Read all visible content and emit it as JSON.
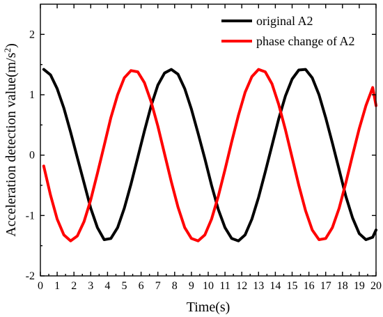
{
  "chart_data": {
    "type": "line",
    "xlabel": "Time(s)",
    "ylabel_main": "Acceleration detection value(m/s",
    "ylabel_sup": "2",
    "ylabel_close": ")",
    "xlim": [
      0,
      20
    ],
    "ylim": [
      -2,
      2.5
    ],
    "x_ticks": [
      "0",
      "1",
      "2",
      "3",
      "4",
      "5",
      "6",
      "7",
      "8",
      "9",
      "10",
      "11",
      "12",
      "13",
      "14",
      "15",
      "16",
      "17",
      "18",
      "19",
      "20"
    ],
    "y_ticks": [
      "-2",
      "-1",
      "0",
      "1",
      "2"
    ],
    "grid": false,
    "legend_position": "top-right",
    "series": [
      {
        "name": "original A2",
        "color": "#000000",
        "x": [
          0.2,
          0.6,
          1.0,
          1.4,
          1.8,
          2.2,
          2.6,
          3.0,
          3.4,
          3.8,
          4.2,
          4.6,
          5.0,
          5.4,
          5.8,
          6.2,
          6.6,
          7.0,
          7.4,
          7.8,
          8.2,
          8.6,
          9.0,
          9.4,
          9.8,
          10.2,
          10.6,
          11.0,
          11.4,
          11.8,
          12.2,
          12.6,
          13.0,
          13.4,
          13.8,
          14.2,
          14.6,
          15.0,
          15.4,
          15.8,
          16.2,
          16.6,
          17.0,
          17.4,
          17.8,
          18.2,
          18.6,
          19.0,
          19.4,
          19.8,
          20.0
        ],
        "y": [
          1.42,
          1.33,
          1.1,
          0.78,
          0.38,
          -0.04,
          -0.46,
          -0.88,
          -1.2,
          -1.4,
          -1.38,
          -1.2,
          -0.88,
          -0.48,
          -0.04,
          0.4,
          0.82,
          1.16,
          1.36,
          1.42,
          1.34,
          1.1,
          0.76,
          0.36,
          -0.06,
          -0.5,
          -0.9,
          -1.2,
          -1.38,
          -1.42,
          -1.32,
          -1.06,
          -0.7,
          -0.28,
          0.16,
          0.6,
          0.98,
          1.26,
          1.41,
          1.42,
          1.28,
          1.0,
          0.62,
          0.2,
          -0.24,
          -0.68,
          -1.04,
          -1.3,
          -1.4,
          -1.36,
          -1.24
        ]
      },
      {
        "name": "phase change of A2",
        "color": "#ff0000",
        "x": [
          0.2,
          0.6,
          1.0,
          1.4,
          1.8,
          2.2,
          2.6,
          3.0,
          3.4,
          3.8,
          4.2,
          4.6,
          5.0,
          5.4,
          5.8,
          6.2,
          6.6,
          7.0,
          7.4,
          7.8,
          8.2,
          8.6,
          9.0,
          9.4,
          9.8,
          10.2,
          10.6,
          11.0,
          11.4,
          11.8,
          12.2,
          12.6,
          13.0,
          13.4,
          13.8,
          14.2,
          14.6,
          15.0,
          15.4,
          15.8,
          16.2,
          16.6,
          17.0,
          17.4,
          17.8,
          18.2,
          18.6,
          19.0,
          19.4,
          19.8,
          20.0
        ],
        "y": [
          -0.18,
          -0.66,
          -1.06,
          -1.32,
          -1.42,
          -1.34,
          -1.1,
          -0.74,
          -0.3,
          0.16,
          0.62,
          1.0,
          1.28,
          1.4,
          1.38,
          1.2,
          0.88,
          0.48,
          0.02,
          -0.44,
          -0.86,
          -1.2,
          -1.38,
          -1.42,
          -1.32,
          -1.06,
          -0.68,
          -0.24,
          0.22,
          0.66,
          1.04,
          1.3,
          1.42,
          1.38,
          1.18,
          0.84,
          0.42,
          -0.04,
          -0.5,
          -0.92,
          -1.24,
          -1.4,
          -1.38,
          -1.2,
          -0.88,
          -0.46,
          0.0,
          0.44,
          0.82,
          1.12,
          0.82
        ]
      }
    ]
  }
}
